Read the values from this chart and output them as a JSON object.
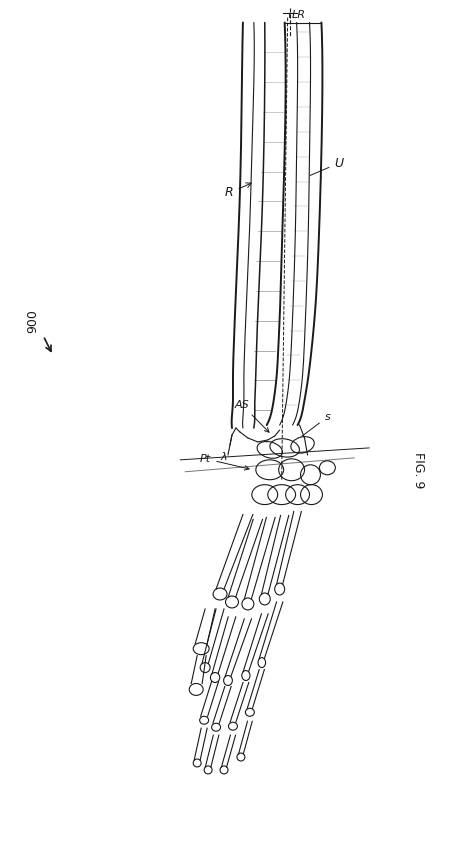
{
  "fig_label": "FIG. 9",
  "ref_900": "900",
  "label_R": "R",
  "label_U": "U",
  "label_LR": "LR",
  "label_AS": "AS",
  "label_s": "s",
  "label_lambda": "λ",
  "label_Pt": "Pt",
  "bg_color": "#ffffff",
  "line_color": "#1a1a1a",
  "figsize": [
    4.57,
    8.66
  ],
  "dpi": 100
}
